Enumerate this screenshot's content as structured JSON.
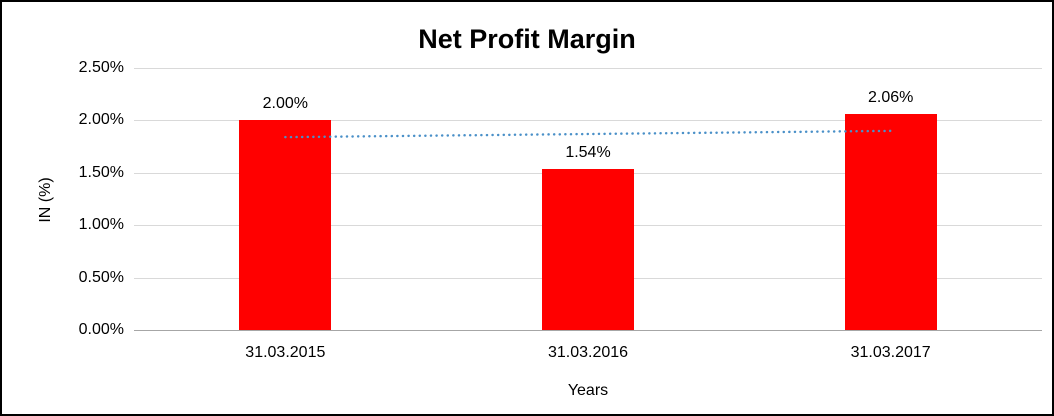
{
  "chart_data": {
    "type": "bar",
    "title": "Net Profit Margin",
    "xlabel": "Years",
    "ylabel": "IN (%)",
    "categories": [
      "31.03.2015",
      "31.03.2016",
      "31.03.2017"
    ],
    "values": [
      2.0,
      1.54,
      2.06
    ],
    "data_labels": [
      "2.00%",
      "1.54%",
      "2.06%"
    ],
    "ylim": [
      0,
      2.5
    ],
    "ytick_step": 0.5,
    "ytick_labels": [
      "0.00%",
      "0.50%",
      "1.00%",
      "1.50%",
      "2.00%",
      "2.50%"
    ],
    "grid": true,
    "legend": "none",
    "bar_color": "#ff0000",
    "gridline_color": "#d9d9d9",
    "baseline_color": "#a6a6a6",
    "trendline": {
      "type": "linear",
      "style": "dotted",
      "color": "#4a90c8",
      "start_value": 1.84,
      "end_value": 1.9
    }
  }
}
